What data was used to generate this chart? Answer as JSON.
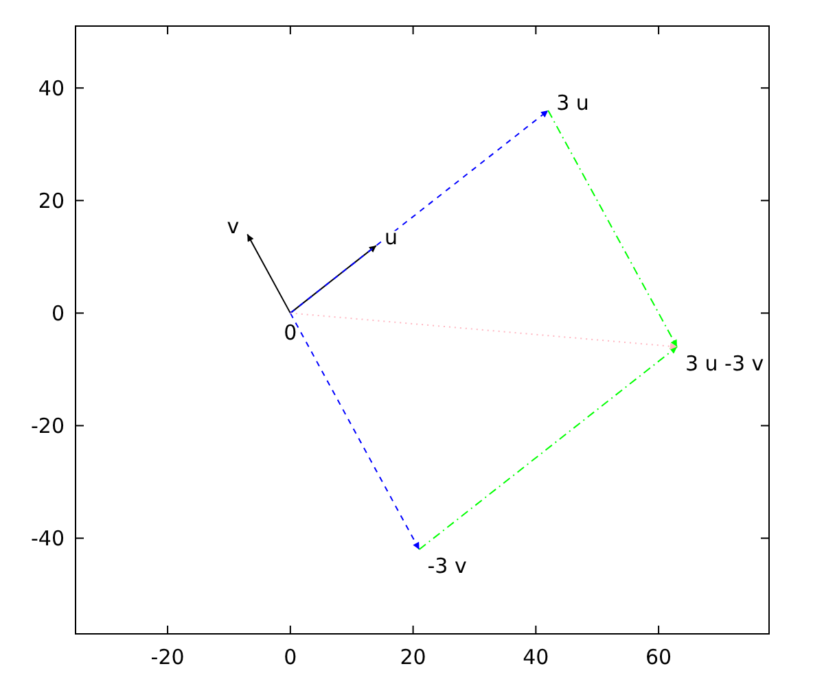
{
  "chart_data": {
    "type": "line",
    "xlim": [
      -35,
      78
    ],
    "ylim": [
      -57,
      51
    ],
    "xticks": [
      -20,
      0,
      20,
      40,
      60
    ],
    "yticks": [
      -40,
      -20,
      0,
      20,
      40
    ],
    "grid": false,
    "series": [
      {
        "color": "#000000",
        "line_style": "solid",
        "x": [
          0,
          14
        ],
        "values": [
          0,
          12
        ]
      },
      {
        "color": "#000000",
        "line_style": "solid",
        "x": [
          0,
          -7
        ],
        "values": [
          0,
          14
        ]
      },
      {
        "color": "#0000ff",
        "line_style": "dashed",
        "x": [
          0,
          42
        ],
        "values": [
          0,
          36
        ]
      },
      {
        "color": "#0000ff",
        "line_style": "dashed",
        "x": [
          0,
          21
        ],
        "values": [
          0,
          -42
        ]
      },
      {
        "color": "#00ff00",
        "line_style": "dashdot",
        "x": [
          42,
          63
        ],
        "values": [
          36,
          -6
        ]
      },
      {
        "color": "#00ff00",
        "line_style": "dashdot",
        "x": [
          21,
          63
        ],
        "values": [
          -42,
          -6
        ]
      },
      {
        "color": "#ffb6c1",
        "line_style": "dotted",
        "x": [
          0,
          63
        ],
        "values": [
          0,
          -6
        ]
      }
    ],
    "annotations": [
      {
        "text": "u",
        "x": 14,
        "y": 12
      },
      {
        "text": "v",
        "x": -7,
        "y": 14
      },
      {
        "text": "0",
        "x": 0,
        "y": 0
      },
      {
        "text": "3 u",
        "x": 42,
        "y": 36
      },
      {
        "text": "3 u -3 v",
        "x": 63,
        "y": -6
      },
      {
        "text": "-3 v",
        "x": 21,
        "y": -42
      }
    ]
  }
}
